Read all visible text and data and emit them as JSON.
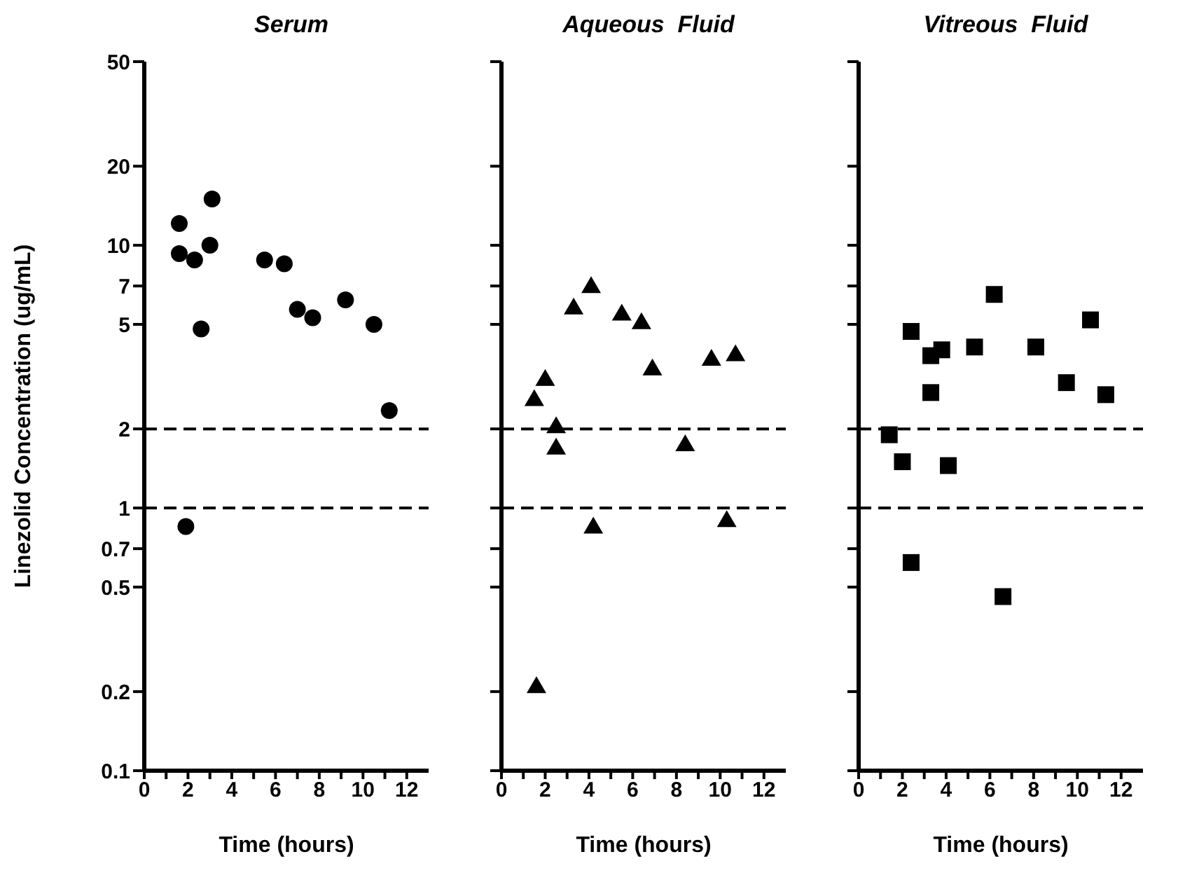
{
  "chart_data": [
    {
      "type": "scatter",
      "title": "Serum",
      "xlabel": "Time  (hours)",
      "ylabel": "Linezolid  Concentration  (ug/mL)",
      "marker": "circle",
      "log": "y",
      "xlim": [
        0,
        13
      ],
      "xticks": [
        0,
        {
          "value": 1,
          "label": null
        },
        2,
        {
          "value": 3,
          "label": null
        },
        4,
        {
          "value": 5,
          "label": null
        },
        6,
        {
          "value": 7,
          "label": null
        },
        8,
        {
          "value": 9,
          "label": null
        },
        10,
        {
          "value": 11,
          "label": null
        },
        12
      ],
      "ylim": [
        0.1,
        50
      ],
      "yticks": [
        0.1,
        0.2,
        0.5,
        0.7,
        1,
        2,
        5,
        7,
        10,
        20,
        50
      ],
      "x": [
        1.6,
        1.6,
        2.3,
        2.6,
        3.1,
        3.0,
        5.5,
        6.4,
        7.0,
        7.7,
        9.2,
        10.5,
        11.2,
        1.9
      ],
      "series": [
        {
          "color": "#000000",
          "values": [
            12.1,
            9.3,
            8.8,
            4.8,
            15,
            10,
            8.8,
            8.5,
            5.7,
            5.3,
            6.2,
            5.0,
            2.35,
            0.85
          ]
        }
      ],
      "ref_lines": [
        {
          "axis": "y",
          "value": 2,
          "line_style": "dashed",
          "color": "#000000"
        },
        {
          "axis": "y",
          "value": 1,
          "line_style": "dashed",
          "color": "#000000"
        }
      ]
    },
    {
      "type": "scatter",
      "title": "Aqueous  Fluid",
      "xlabel": "Time  (hours)",
      "marker": "triangle",
      "log": "y",
      "tick_labels": "x",
      "xlim": [
        0,
        13
      ],
      "xticks": [
        0,
        {
          "value": 1,
          "label": null
        },
        2,
        {
          "value": 3,
          "label": null
        },
        4,
        {
          "value": 5,
          "label": null
        },
        6,
        {
          "value": 7,
          "label": null
        },
        8,
        {
          "value": 9,
          "label": null
        },
        10,
        {
          "value": 11,
          "label": null
        },
        12
      ],
      "ylim": [
        0.1,
        50
      ],
      "yticks": [
        0.1,
        0.2,
        0.5,
        0.7,
        1,
        2,
        5,
        7,
        10,
        20,
        50
      ],
      "x": [
        1.5,
        2.0,
        2.5,
        2.5,
        3.3,
        4.1,
        4.2,
        1.6,
        5.5,
        6.4,
        6.9,
        8.4,
        9.6,
        10.7,
        10.3
      ],
      "series": [
        {
          "color": "#000000",
          "values": [
            2.6,
            3.1,
            2.05,
            1.7,
            5.8,
            7,
            0.85,
            0.21,
            5.5,
            5.1,
            3.4,
            1.75,
            3.7,
            3.85,
            0.9
          ]
        }
      ],
      "ref_lines": [
        {
          "axis": "y",
          "value": 2,
          "line_style": "dashed",
          "color": "#000000"
        },
        {
          "axis": "y",
          "value": 1,
          "line_style": "dashed",
          "color": "#000000"
        }
      ]
    },
    {
      "type": "scatter",
      "title": "Vitreous  Fluid",
      "xlabel": "Time  (hours)",
      "marker": "square",
      "log": "y",
      "tick_labels": "x",
      "xlim": [
        0,
        13
      ],
      "xticks": [
        0,
        {
          "value": 1,
          "label": null
        },
        2,
        {
          "value": 3,
          "label": null
        },
        4,
        {
          "value": 5,
          "label": null
        },
        6,
        {
          "value": 7,
          "label": null
        },
        8,
        {
          "value": 9,
          "label": null
        },
        10,
        {
          "value": 11,
          "label": null
        },
        12
      ],
      "ylim": [
        0.1,
        50
      ],
      "yticks": [
        0.1,
        0.2,
        0.5,
        0.7,
        1,
        2,
        5,
        7,
        10,
        20,
        50
      ],
      "x": [
        1.4,
        2.0,
        2.4,
        2.4,
        3.3,
        3.3,
        3.8,
        4.1,
        5.3,
        6.2,
        6.6,
        8.1,
        9.5,
        10.6,
        11.3
      ],
      "series": [
        {
          "color": "#000000",
          "values": [
            1.9,
            1.5,
            4.7,
            0.62,
            3.8,
            2.75,
            4.0,
            1.45,
            4.1,
            6.5,
            0.46,
            4.1,
            3.0,
            5.2,
            2.7
          ]
        }
      ],
      "ref_lines": [
        {
          "axis": "y",
          "value": 2,
          "line_style": "dashed",
          "color": "#000000"
        },
        {
          "axis": "y",
          "value": 1,
          "line_style": "dashed",
          "color": "#000000"
        }
      ]
    }
  ]
}
